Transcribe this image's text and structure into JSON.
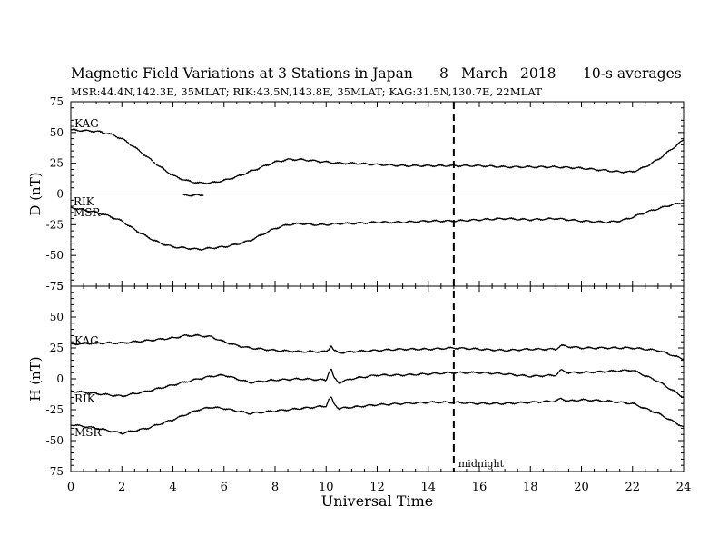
{
  "title": {
    "main": "Magnetic Field Variations at 3 Stations in Japan",
    "day": "8",
    "month": "March",
    "year": "2018",
    "avg": "10-s averages"
  },
  "subtitle": "MSR:44.4N,142.3E, 35MLAT;  RIK:43.5N,143.8E, 35MLAT;  KAG:31.5N,130.7E, 22MLAT",
  "chart_data": [
    {
      "type": "line",
      "ylabel": "D (nT)",
      "ylim": [
        -75,
        75
      ],
      "yticks": [
        75,
        50,
        25,
        0,
        -25,
        -50,
        -75
      ],
      "xlim": [
        0,
        24
      ],
      "zero_line": true,
      "series": [
        {
          "name": "KAG",
          "x": [
            0,
            1,
            1.5,
            2,
            2.5,
            3,
            3.5,
            4,
            4.5,
            5,
            5.5,
            6,
            6.5,
            7,
            7.5,
            8,
            8.5,
            9,
            9.5,
            10,
            10.5,
            11,
            12,
            13,
            14,
            15,
            16,
            17,
            18,
            19,
            20,
            21,
            21.5,
            22,
            22.5,
            23,
            23.5,
            24
          ],
          "values": [
            52,
            51,
            49,
            45,
            38,
            30,
            22,
            15,
            11,
            9,
            9,
            11,
            14,
            18,
            22,
            26,
            28,
            28,
            27,
            26,
            25,
            25,
            24,
            23,
            23,
            23,
            23,
            22,
            22,
            22,
            21,
            19,
            18,
            18,
            22,
            28,
            36,
            44
          ]
        },
        {
          "name": "RIK",
          "x": [
            4.4,
            4.8,
            5.2
          ],
          "values": [
            -1,
            -1,
            -1
          ]
        },
        {
          "name": "MSR",
          "x": [
            0,
            0.5,
            1,
            1.5,
            2,
            2.5,
            3,
            3.5,
            4,
            4.5,
            5,
            5.5,
            6,
            6.5,
            7,
            7.5,
            8,
            8.5,
            9,
            9.5,
            10,
            10.5,
            11,
            12,
            13,
            14,
            15,
            16,
            17,
            18,
            19,
            20,
            21,
            21.5,
            22,
            22.5,
            23,
            23.5,
            24
          ],
          "values": [
            -11,
            -13,
            -15,
            -18,
            -22,
            -29,
            -35,
            -40,
            -43,
            -44,
            -45,
            -44,
            -43,
            -41,
            -38,
            -33,
            -28,
            -25,
            -24,
            -25,
            -25,
            -24,
            -24,
            -23,
            -23,
            -22,
            -22,
            -21,
            -20,
            -21,
            -20,
            -22,
            -23,
            -22,
            -19,
            -15,
            -12,
            -9,
            -7
          ]
        }
      ]
    },
    {
      "type": "line",
      "ylabel": "H (nT)",
      "ylim": [
        -75,
        75
      ],
      "yticks": [
        75,
        50,
        25,
        0,
        -25,
        -50,
        -75
      ],
      "xlim": [
        0,
        24
      ],
      "xticks": [
        0,
        2,
        4,
        6,
        8,
        10,
        12,
        14,
        16,
        18,
        20,
        22,
        24
      ],
      "xlabel": "Universal Time",
      "series": [
        {
          "name": "KAG",
          "x": [
            0,
            1,
            2,
            3,
            4,
            4.5,
            5,
            5.5,
            6,
            6.5,
            7,
            8,
            9,
            10,
            10.1,
            10.2,
            10.3,
            10.5,
            11,
            12,
            13,
            14,
            15,
            16,
            17,
            18,
            19,
            19.2,
            19.5,
            20,
            21,
            22,
            23,
            24
          ],
          "values": [
            28,
            29,
            29,
            31,
            33,
            35,
            35,
            34,
            30,
            27,
            25,
            23,
            22,
            22,
            24,
            27,
            23,
            21,
            22,
            23,
            24,
            24,
            25,
            24,
            23,
            24,
            24,
            27,
            26,
            25,
            25,
            25,
            23,
            16
          ]
        },
        {
          "name": "RIK",
          "x": [
            0,
            1,
            2,
            3,
            4,
            5,
            5.5,
            6,
            6.5,
            7,
            8,
            9,
            10,
            10.1,
            10.2,
            10.3,
            10.5,
            11,
            12,
            13,
            14,
            15,
            16,
            17,
            18,
            19,
            19.2,
            19.5,
            20,
            21,
            22,
            23,
            24
          ],
          "values": [
            -10,
            -12,
            -14,
            -10,
            -5,
            0,
            2,
            3,
            0,
            -3,
            -1,
            0,
            -1,
            5,
            8,
            1,
            -3,
            0,
            3,
            3,
            4,
            5,
            5,
            4,
            2,
            3,
            7,
            5,
            5,
            6,
            7,
            -2,
            -15
          ]
        },
        {
          "name": "MSR",
          "x": [
            0,
            1,
            2,
            3,
            4,
            5,
            5.5,
            6,
            6.5,
            7,
            8,
            9,
            10,
            10.1,
            10.2,
            10.3,
            10.5,
            11,
            12,
            13,
            14,
            15,
            16,
            17,
            18,
            19,
            19.2,
            19.5,
            20,
            21,
            22,
            23,
            24
          ],
          "values": [
            -37,
            -40,
            -44,
            -40,
            -33,
            -25,
            -23,
            -24,
            -26,
            -28,
            -26,
            -24,
            -22,
            -17,
            -15,
            -20,
            -24,
            -23,
            -21,
            -20,
            -19,
            -19,
            -20,
            -20,
            -19,
            -18,
            -16,
            -18,
            -17,
            -18,
            -20,
            -28,
            -39
          ]
        }
      ]
    }
  ],
  "marker": {
    "x": 15,
    "label": "midnight"
  }
}
